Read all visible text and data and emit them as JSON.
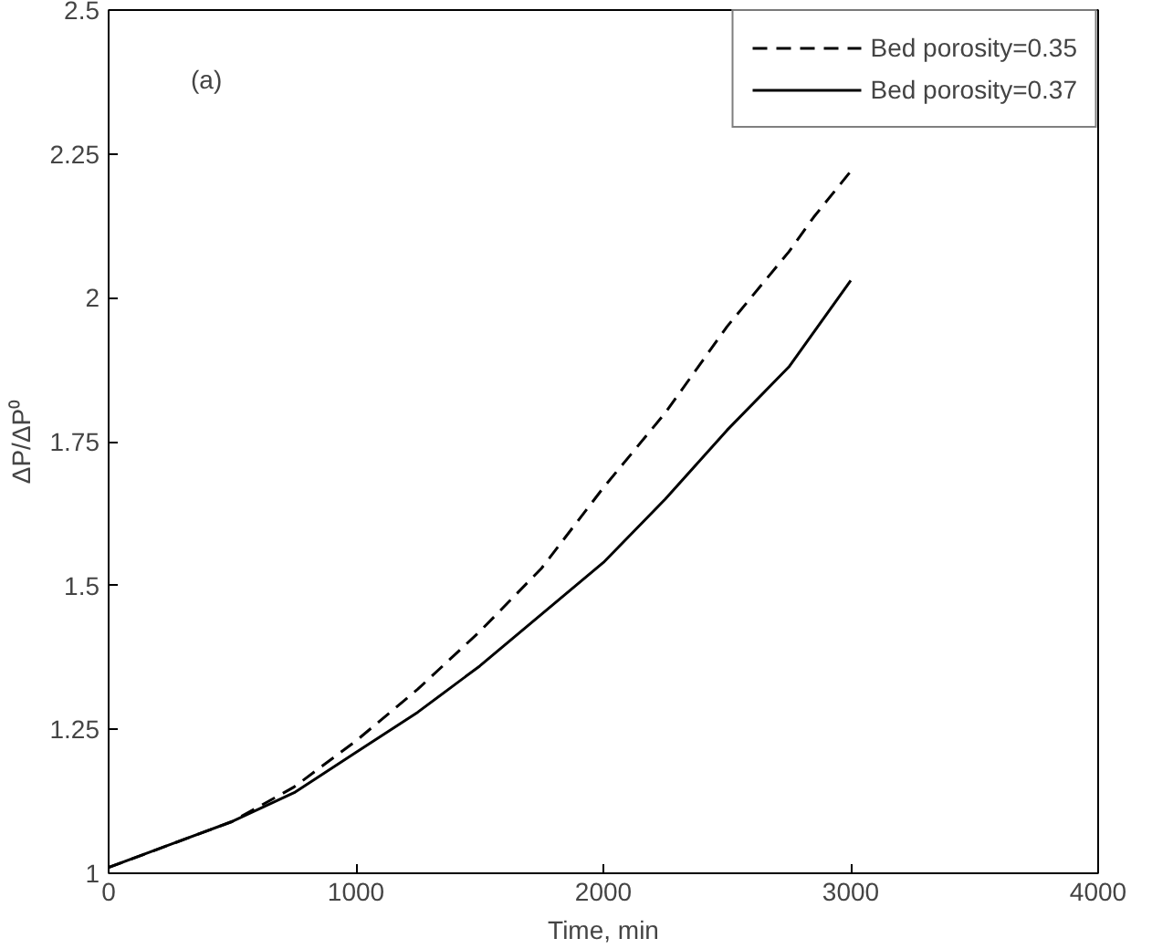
{
  "chart_data": {
    "type": "line",
    "xlabel": "Time, min",
    "ylabel": "ΔP/ΔP⁰",
    "annotations": [
      "(a)"
    ],
    "xlim": [
      0,
      4000
    ],
    "xticks": [
      0,
      1000,
      2000,
      3000,
      4000
    ],
    "ylim": [
      1,
      2.5
    ],
    "yticks": [
      1,
      1.25,
      1.5,
      1.75,
      2,
      2.25,
      2.5
    ],
    "grid": false,
    "legend": "top right",
    "marker": "none",
    "series": [
      {
        "name": "Bed porosity=0.35",
        "color": "#000000",
        "line_style": "dashed",
        "x": [
          0,
          250,
          500,
          750,
          1000,
          1250,
          1500,
          1750,
          2000,
          2250,
          2500,
          2750,
          2850,
          3000
        ],
        "values": [
          1.01,
          1.05,
          1.09,
          1.15,
          1.23,
          1.32,
          1.42,
          1.53,
          1.67,
          1.8,
          1.95,
          2.08,
          2.14,
          2.22
        ]
      },
      {
        "name": "Bed porosity=0.37",
        "color": "#000000",
        "line_style": "solid",
        "x": [
          0,
          250,
          500,
          750,
          1000,
          1250,
          1500,
          1750,
          2000,
          2250,
          2500,
          2750,
          3000
        ],
        "values": [
          1.01,
          1.05,
          1.09,
          1.14,
          1.21,
          1.28,
          1.36,
          1.45,
          1.54,
          1.65,
          1.77,
          1.88,
          2.03
        ]
      }
    ]
  }
}
